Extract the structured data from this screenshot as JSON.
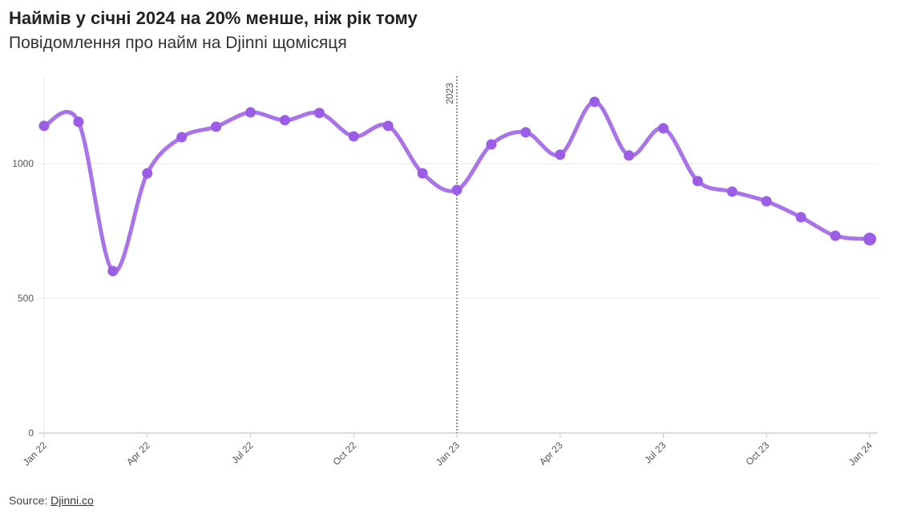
{
  "title": "Наймів у січні 2024 на 20% менше, ніж рік тому",
  "subtitle": "Повідомлення про найм на Djinni щомісяця",
  "source_label": "Source:",
  "source_link": "Djinni.co",
  "chart_data": {
    "type": "line",
    "title": "Наймів у січні 2024 на 20% менше, ніж рік тому",
    "ylim": [
      0,
      1300
    ],
    "yticks": [
      0,
      500,
      1000
    ],
    "xtick_labels": [
      "Jan 22",
      "Apr 22",
      "Jul 22",
      "Oct 22",
      "Jan 23",
      "Apr 23",
      "Jul 23",
      "Oct 23",
      "Jan 24"
    ],
    "x": [
      "Jan 22",
      "Feb 22",
      "Mar 22",
      "Apr 22",
      "May 22",
      "Jun 22",
      "Jul 22",
      "Aug 22",
      "Sep 22",
      "Oct 22",
      "Nov 22",
      "Dec 22",
      "Jan 23",
      "Feb 23",
      "Mar 23",
      "Apr 23",
      "May 23",
      "Jun 23",
      "Jul 23",
      "Aug 23",
      "Sep 23",
      "Oct 23",
      "Nov 23",
      "Dec 23",
      "Jan 24"
    ],
    "series": [
      {
        "name": "Hires",
        "color": "#a874e8",
        "marker_color": "#9b5de5",
        "values": [
          1140,
          1155,
          601,
          964,
          1098,
          1137,
          1190,
          1161,
          1188,
          1101,
          1140,
          964,
          902,
          1071,
          1116,
          1033,
          1229,
          1030,
          1131,
          935,
          896,
          860,
          801,
          732,
          720
        ]
      }
    ],
    "annotation": {
      "label": "2023",
      "at_index": 12
    }
  }
}
